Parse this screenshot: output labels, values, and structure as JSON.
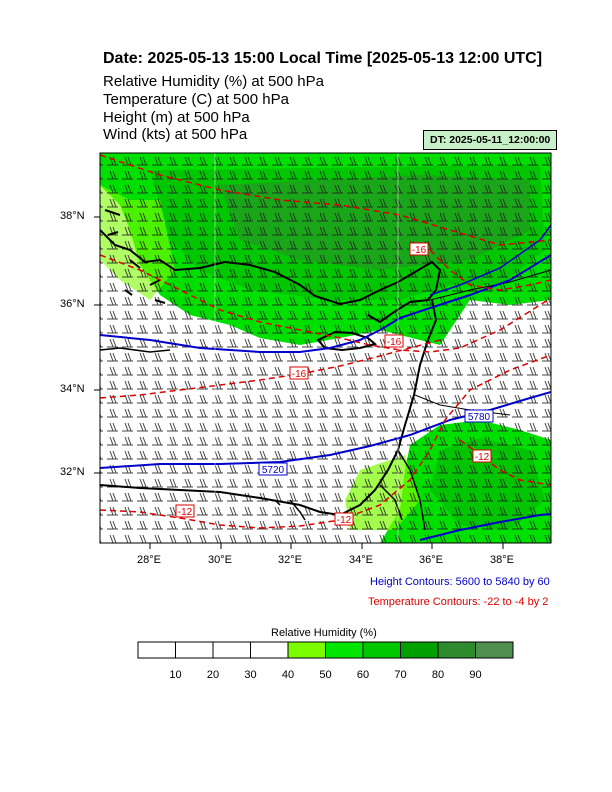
{
  "title": "Date: 2025-05-13  15:00 Local Time [2025-05-13  12:00 UTC]",
  "variables": [
    "Relative Humidity   (%)     at   500 hPa",
    "Temperature   (C)     at   500 hPa",
    "Height   (m)     at   500 hPa",
    "Wind   (kts)     at   500 hPa"
  ],
  "dt_label": "DT: 2025-05-11_12:00:00",
  "lat_labels": [
    "38°N",
    "36°N",
    "34°N",
    "32°N"
  ],
  "lon_labels": [
    "28°E",
    "30°E",
    "32°E",
    "34°E",
    "36°E",
    "38°E"
  ],
  "height_contours_note": "Height Contours: 5600 to 5840 by 60",
  "temperature_contours_note": "Temperature Contours: -22 to -4 by 2",
  "contour_labels": {
    "height": [
      "5720",
      "5780"
    ],
    "temperature": [
      "-16",
      "-16",
      "-12",
      "-12",
      "-12",
      "-16"
    ]
  },
  "colorbar": {
    "title": "Relative Humidity  (%)",
    "ticks": [
      "10",
      "20",
      "30",
      "40",
      "50",
      "60",
      "70",
      "80",
      "90"
    ],
    "colors": [
      "#ffffff",
      "#ffffff",
      "#ffffff",
      "#ffffff",
      "#7cfc00",
      "#00e600",
      "#00c800",
      "#00a000",
      "#2e8b2e",
      "#4f8f4f"
    ]
  },
  "colors": {
    "height_contour": "#0000cc",
    "temperature_contour": "#dd0000",
    "coast": "#000000"
  }
}
